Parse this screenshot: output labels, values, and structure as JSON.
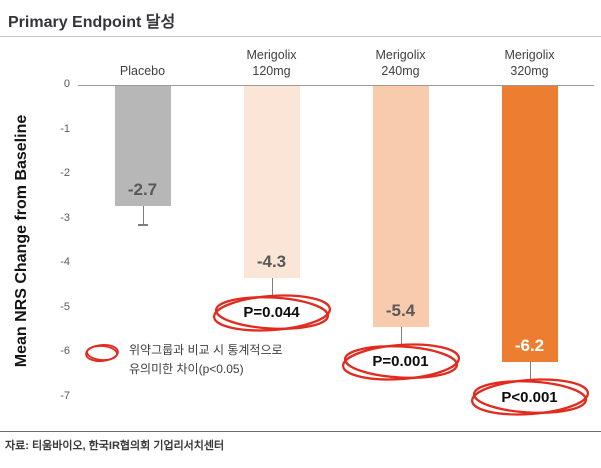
{
  "header": {
    "title": "Primary Endpoint 달성"
  },
  "chart_data": {
    "type": "bar",
    "title": "Primary Endpoint 달성",
    "xlabel": "",
    "ylabel": "Mean NRS Change from Baseline",
    "ylim": [
      -7,
      0
    ],
    "yticks": [
      0,
      -1,
      -2,
      -3,
      -4,
      -5,
      -6,
      -7
    ],
    "grid": false,
    "legend_position": "none",
    "categories": [
      "Placebo",
      "Merigolix 120mg",
      "Merigolix 240mg",
      "Merigolix 320mg"
    ],
    "values": [
      -2.7,
      -4.3,
      -5.4,
      -6.2
    ],
    "value_labels": [
      "-2.7",
      "-4.3",
      "-5.4",
      "-6.2"
    ],
    "p_values": [
      "",
      "P=0.044",
      "P=0.001",
      "P<0.001"
    ],
    "error_bars": true,
    "bar_colors": [
      "#b7b7b7",
      "#fbe5d6",
      "#f8cbad",
      "#ed7d31"
    ],
    "value_label_colors": [
      "#595959",
      "#595959",
      "#595959",
      "#ffffff"
    ],
    "annotation_color": "#e02b1e"
  },
  "legend_note": {
    "line1": "위약그룹과 비교 시 통계적으로",
    "line2": "유의미한 차이(p<0.05)"
  },
  "footer": {
    "source": "자료: 티움바이오, 한국IR협의회 기업리서치센터"
  }
}
